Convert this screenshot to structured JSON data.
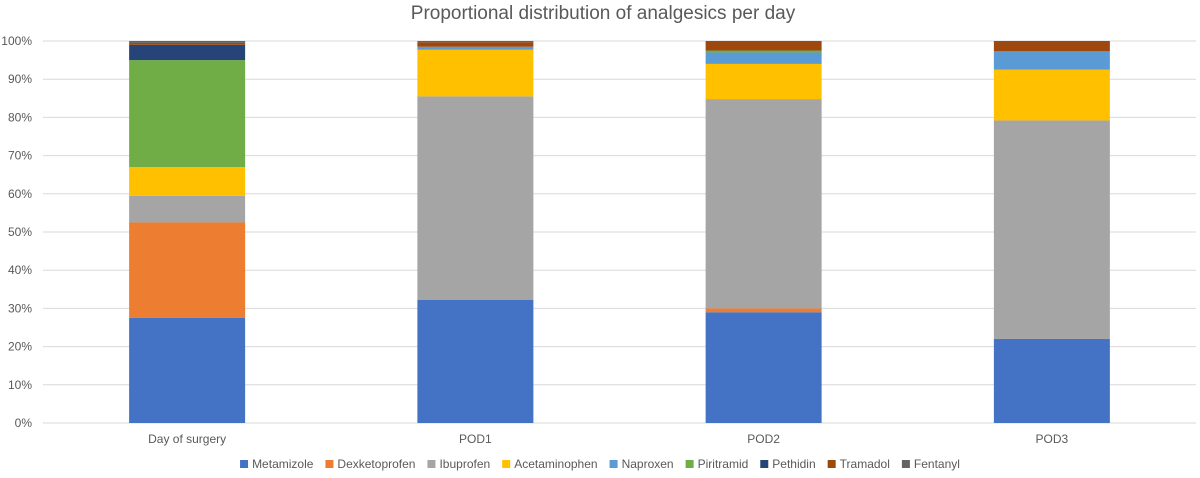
{
  "chart_data": {
    "type": "bar",
    "stacked": true,
    "title": "Proportional distribution of analgesics per day",
    "xlabel": "",
    "ylabel": "",
    "ylim": [
      0,
      100
    ],
    "y_tick_labels": [
      "0%",
      "10%",
      "20%",
      "30%",
      "40%",
      "50%",
      "60%",
      "70%",
      "80%",
      "90%",
      "100%"
    ],
    "categories": [
      "Day of surgery",
      "POD1",
      "POD2",
      "POD3"
    ],
    "grid": true,
    "legend_position": "bottom",
    "series": [
      {
        "name": "Metamizole",
        "color": "#4472c4",
        "values": [
          27.5,
          32.2,
          29.0,
          22.0
        ]
      },
      {
        "name": "Dexketoprofen",
        "color": "#ed7d31",
        "values": [
          25.0,
          0.0,
          1.0,
          0.0
        ]
      },
      {
        "name": "Ibuprofen",
        "color": "#a5a5a5",
        "values": [
          7.0,
          53.3,
          54.8,
          57.2
        ]
      },
      {
        "name": "Acetaminophen",
        "color": "#ffc000",
        "values": [
          7.5,
          12.2,
          9.2,
          13.3
        ]
      },
      {
        "name": "Naproxen",
        "color": "#5b9bd5",
        "values": [
          0.0,
          0.8,
          3.0,
          4.8
        ]
      },
      {
        "name": "Piritramid",
        "color": "#70ad47",
        "values": [
          28.0,
          0.0,
          0.5,
          0.0
        ]
      },
      {
        "name": "Pethidin",
        "color": "#264478",
        "values": [
          4.0,
          0.0,
          0.0,
          0.0
        ]
      },
      {
        "name": "Tramadol",
        "color": "#9e480e",
        "values": [
          0.5,
          1.2,
          2.5,
          2.7
        ]
      },
      {
        "name": "Fentanyl",
        "color": "#636363",
        "values": [
          0.5,
          0.3,
          0.0,
          0.0
        ]
      }
    ]
  }
}
